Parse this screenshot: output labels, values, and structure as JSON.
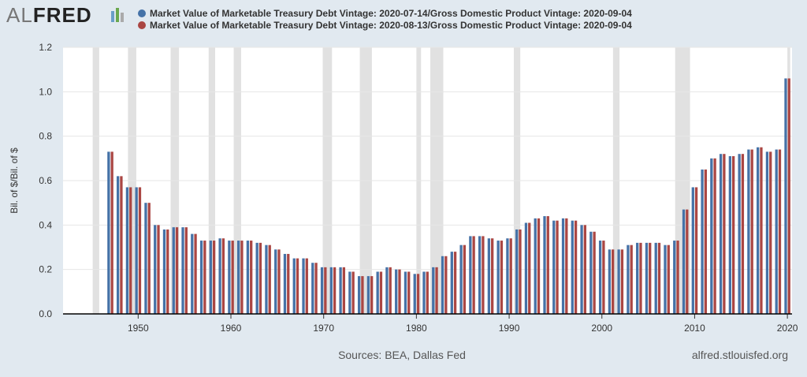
{
  "logo": {
    "part1": "AL",
    "part2": "FRED"
  },
  "chart_data": {
    "type": "bar",
    "x": [
      1947,
      1948,
      1949,
      1950,
      1951,
      1952,
      1953,
      1954,
      1955,
      1956,
      1957,
      1958,
      1959,
      1960,
      1961,
      1962,
      1963,
      1964,
      1965,
      1966,
      1967,
      1968,
      1969,
      1970,
      1971,
      1972,
      1973,
      1974,
      1975,
      1976,
      1977,
      1978,
      1979,
      1980,
      1981,
      1982,
      1983,
      1984,
      1985,
      1986,
      1987,
      1988,
      1989,
      1990,
      1991,
      1992,
      1993,
      1994,
      1995,
      1996,
      1997,
      1998,
      1999,
      2000,
      2001,
      2002,
      2003,
      2004,
      2005,
      2006,
      2007,
      2008,
      2009,
      2010,
      2011,
      2012,
      2013,
      2014,
      2015,
      2016,
      2017,
      2018,
      2019,
      2020
    ],
    "series": [
      {
        "name": "Market Value of Marketable Treasury Debt Vintage: 2020-07-14/Gross Domestic Product Vintage: 2020-09-04",
        "color": "#4572a7",
        "values": [
          0.73,
          0.62,
          0.57,
          0.57,
          0.5,
          0.4,
          0.38,
          0.39,
          0.39,
          0.36,
          0.33,
          0.33,
          0.34,
          0.33,
          0.33,
          0.33,
          0.32,
          0.31,
          0.29,
          0.27,
          0.25,
          0.25,
          0.23,
          0.21,
          0.21,
          0.21,
          0.19,
          0.17,
          0.17,
          0.19,
          0.21,
          0.2,
          0.19,
          0.18,
          0.19,
          0.21,
          0.26,
          0.28,
          0.31,
          0.35,
          0.35,
          0.34,
          0.33,
          0.34,
          0.38,
          0.41,
          0.43,
          0.44,
          0.42,
          0.43,
          0.42,
          0.4,
          0.37,
          0.33,
          0.29,
          0.29,
          0.31,
          0.32,
          0.32,
          0.32,
          0.31,
          0.33,
          0.47,
          0.57,
          0.65,
          0.7,
          0.72,
          0.71,
          0.72,
          0.74,
          0.75,
          0.73,
          0.74,
          1.06
        ]
      },
      {
        "name": "Market Value of Marketable Treasury Debt Vintage: 2020-08-13/Gross Domestic Product Vintage: 2020-09-04",
        "color": "#aa4643",
        "values": [
          0.73,
          0.62,
          0.57,
          0.57,
          0.5,
          0.4,
          0.38,
          0.39,
          0.39,
          0.36,
          0.33,
          0.33,
          0.34,
          0.33,
          0.33,
          0.33,
          0.32,
          0.31,
          0.29,
          0.27,
          0.25,
          0.25,
          0.23,
          0.21,
          0.21,
          0.21,
          0.19,
          0.17,
          0.17,
          0.19,
          0.21,
          0.2,
          0.19,
          0.18,
          0.19,
          0.21,
          0.26,
          0.28,
          0.31,
          0.35,
          0.35,
          0.34,
          0.33,
          0.34,
          0.38,
          0.41,
          0.43,
          0.44,
          0.42,
          0.43,
          0.42,
          0.4,
          0.37,
          0.33,
          0.29,
          0.29,
          0.31,
          0.32,
          0.32,
          0.32,
          0.31,
          0.33,
          0.47,
          0.57,
          0.65,
          0.7,
          0.72,
          0.71,
          0.72,
          0.74,
          0.75,
          0.73,
          0.74,
          1.06
        ]
      }
    ],
    "recessions": [
      [
        1945.1,
        1945.8
      ],
      [
        1948.9,
        1949.8
      ],
      [
        1953.5,
        1954.4
      ],
      [
        1957.6,
        1958.3
      ],
      [
        1960.3,
        1961.1
      ],
      [
        1969.9,
        1970.9
      ],
      [
        1973.9,
        1975.2
      ],
      [
        1980.0,
        1980.5
      ],
      [
        1981.5,
        1982.9
      ],
      [
        1990.5,
        1991.2
      ],
      [
        2001.2,
        2001.9
      ],
      [
        2007.9,
        2009.5
      ],
      [
        2020.0,
        2020.3
      ]
    ],
    "y_label": "Bil. of $/Bil. of $",
    "xlim": [
      1941.9,
      2020.5
    ],
    "xticks": [
      1950,
      1960,
      1970,
      1980,
      1990,
      2000,
      2010,
      2020
    ],
    "ylim": [
      0,
      1.2
    ],
    "yticks": [
      {
        "value": 0,
        "label": "0.0"
      },
      0.2,
      0.4,
      0.6,
      0.8,
      {
        "value": 1,
        "label": "1.0"
      },
      1.2
    ],
    "grid": true,
    "source": "Sources: BEA, Dallas Fed",
    "site": "alfred.stlouisfed.org"
  }
}
